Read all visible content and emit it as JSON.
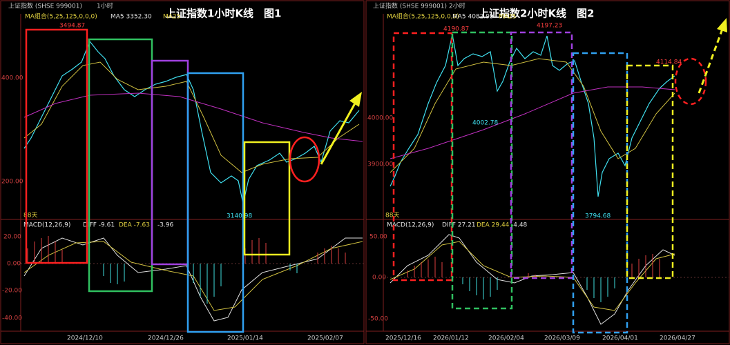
{
  "panels": [
    {
      "header": "上证指数 (SHSE 999001)",
      "period": "1小时",
      "title": "上证指数1小时K线　图1",
      "ma_label": "MA组合(5,25,125,0,0,0)",
      "ma5": "MA5 3352.30",
      "ma25": "MA25",
      "price_labels": [
        "400.00",
        "200.00"
      ],
      "annotations": [
        "3494.87",
        "3140.98"
      ],
      "days": "88天",
      "macd": {
        "label": "MACD(12,26,9)",
        "diff": "DIFF -9.61",
        "dea": "DEA -7.63",
        "value": "-3.96",
        "axis": [
          "20.00",
          "0.00",
          "-20.00",
          "-40.00"
        ]
      },
      "dates": [
        "2024/12/10",
        "2024/12/26",
        "2025/01/14",
        "2025/02/07"
      ]
    },
    {
      "header": "上证指数 (SHSE 999001)",
      "period": "2小时",
      "title": "上证指数2小时K线　图2",
      "ma_label": "MA组合(5,25,125,0,0,0)",
      "ma5": "MA5 4082.95",
      "ma25": "MA25",
      "price_labels": [
        "4000.00",
        "3900.00"
      ],
      "annotations": [
        "4190.87",
        "4197.23",
        "4002.78",
        "3794.68",
        "4114.84"
      ],
      "days": "88天",
      "macd": {
        "label": "MACD(12,26,9)",
        "diff": "DIFF 27.21",
        "dea": "DEA 29.44",
        "value": "-4.48",
        "axis": [
          "50.00",
          "0.00",
          "-50.00"
        ]
      },
      "dates": [
        "2025/12/16",
        "2026/01/12",
        "2026/02/04",
        "2026/03/09",
        "2026/04/01",
        "2026/04/27"
      ]
    }
  ]
}
